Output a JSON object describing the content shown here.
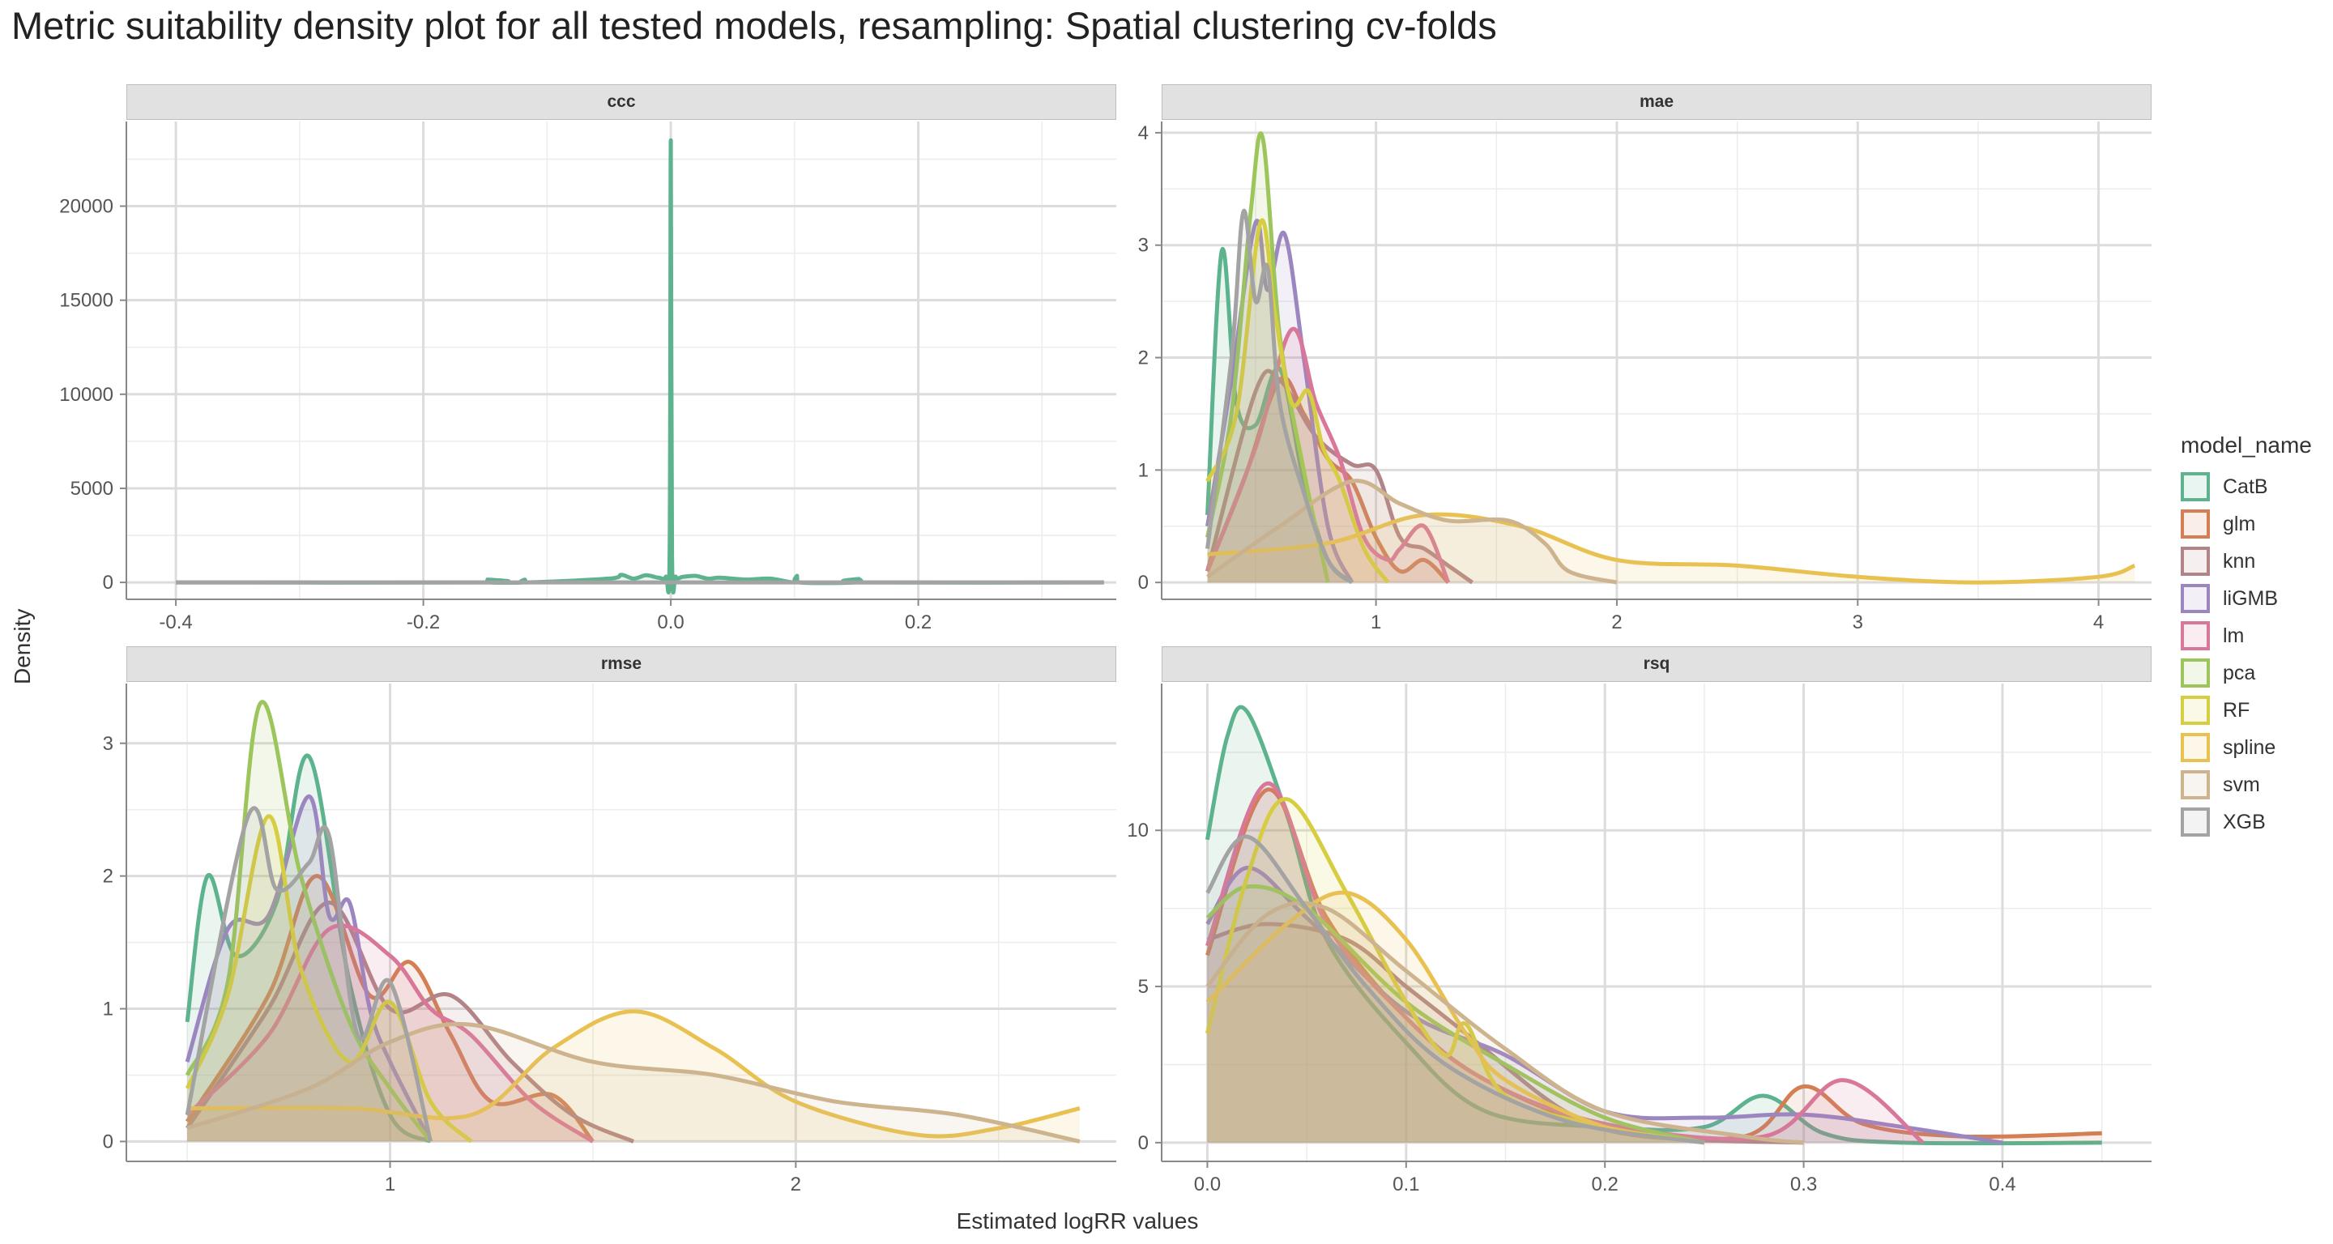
{
  "title": "Metric suitability density plot for all tested models, resampling: Spatial clustering cv-folds",
  "xlabel": "Estimated logRR values",
  "ylabel": "Density",
  "legend_title": "model_name",
  "models": [
    {
      "name": "CatB",
      "color": "#5DB38E"
    },
    {
      "name": "glm",
      "color": "#D47F53"
    },
    {
      "name": "knn",
      "color": "#B28487"
    },
    {
      "name": "liGMB",
      "color": "#9B86C0"
    },
    {
      "name": "lm",
      "color": "#D9779B"
    },
    {
      "name": "pca",
      "color": "#9CC55B"
    },
    {
      "name": "RF",
      "color": "#D6CD40"
    },
    {
      "name": "spline",
      "color": "#E8C150"
    },
    {
      "name": "svm",
      "color": "#CDB48F"
    },
    {
      "name": "XGB",
      "color": "#A3A3A3"
    }
  ],
  "chart_data": [
    {
      "type": "area",
      "panel": "ccc",
      "xlim": [
        -0.44,
        0.36
      ],
      "ylim": [
        -900,
        24500
      ],
      "xticks": [
        -0.4,
        -0.2,
        0.0,
        0.2
      ],
      "xtick_labels": [
        "-0.4",
        "-0.2",
        "0.0",
        "0.2"
      ],
      "yticks": [
        0,
        5000,
        10000,
        15000,
        20000
      ],
      "ytick_labels": [
        "0",
        "5000",
        "10000",
        "15000",
        "20000"
      ],
      "xminor": [
        -0.3,
        -0.1,
        0.1,
        0.3
      ],
      "yminor": [
        2500,
        7500,
        12500,
        17500,
        22500
      ],
      "series": [
        {
          "name": "CatB",
          "x": [
            -0.4,
            -0.15,
            -0.148,
            -0.146,
            -0.12,
            -0.118,
            -0.116,
            -0.05,
            -0.04,
            -0.03,
            -0.02,
            -0.01,
            -0.004,
            -0.001,
            0.0,
            0.001,
            0.004,
            0.01,
            0.02,
            0.03,
            0.04,
            0.06,
            0.08,
            0.1,
            0.102,
            0.104,
            0.15,
            0.152,
            0.154,
            0.35
          ],
          "y": [
            0,
            0,
            150,
            0,
            0,
            150,
            0,
            200,
            400,
            200,
            380,
            250,
            300,
            1500,
            23500,
            1500,
            300,
            300,
            350,
            200,
            250,
            150,
            200,
            0,
            350,
            0,
            0,
            180,
            0,
            0
          ]
        },
        {
          "name": "XGB",
          "x": [
            -0.4,
            0.35
          ],
          "y": [
            0,
            0
          ]
        }
      ]
    },
    {
      "type": "area",
      "panel": "mae",
      "xlim": [
        0.11,
        4.22
      ],
      "ylim": [
        -0.15,
        4.1
      ],
      "xticks": [
        1,
        2,
        3,
        4
      ],
      "xtick_labels": [
        "1",
        "2",
        "3",
        "4"
      ],
      "yticks": [
        0,
        1,
        2,
        3,
        4
      ],
      "ytick_labels": [
        "0",
        "1",
        "2",
        "3",
        "4"
      ],
      "xminor": [
        0.5,
        1.5,
        2.5,
        3.5
      ],
      "yminor": [
        0.5,
        1.5,
        2.5,
        3.5
      ],
      "series": [
        {
          "name": "CatB",
          "x": [
            0.3,
            0.36,
            0.42,
            0.5,
            0.6,
            0.7,
            0.8,
            0.9
          ],
          "y": [
            0.6,
            2.95,
            1.6,
            1.4,
            1.9,
            0.9,
            0.2,
            0
          ]
        },
        {
          "name": "glm",
          "x": [
            0.3,
            0.45,
            0.6,
            0.7,
            0.8,
            0.9,
            1.0,
            1.1,
            1.2,
            1.3
          ],
          "y": [
            0.1,
            0.9,
            1.8,
            1.5,
            1.1,
            0.9,
            0.4,
            0.1,
            0.2,
            0
          ]
        },
        {
          "name": "knn",
          "x": [
            0.3,
            0.5,
            0.6,
            0.75,
            0.9,
            1.0,
            1.1,
            1.2,
            1.3,
            1.4
          ],
          "y": [
            0.1,
            1.7,
            1.8,
            1.3,
            1.05,
            1.0,
            0.4,
            0.3,
            0.15,
            0
          ]
        },
        {
          "name": "liGMB",
          "x": [
            0.3,
            0.4,
            0.5,
            0.55,
            0.62,
            0.7,
            0.8,
            0.9
          ],
          "y": [
            0.5,
            1.8,
            3.2,
            2.6,
            3.1,
            2.0,
            0.5,
            0
          ]
        },
        {
          "name": "lm",
          "x": [
            0.3,
            0.5,
            0.65,
            0.75,
            0.85,
            0.95,
            1.05,
            1.1,
            1.2,
            1.3
          ],
          "y": [
            0.1,
            1.2,
            2.25,
            1.6,
            1.1,
            0.4,
            0.2,
            0.3,
            0.5,
            0
          ]
        },
        {
          "name": "pca",
          "x": [
            0.3,
            0.4,
            0.48,
            0.53,
            0.6,
            0.7,
            0.8
          ],
          "y": [
            0.4,
            1.5,
            3.3,
            3.95,
            2.2,
            1.0,
            0
          ]
        },
        {
          "name": "RF",
          "x": [
            0.3,
            0.42,
            0.52,
            0.58,
            0.65,
            0.72,
            0.78,
            0.85,
            0.95,
            1.05
          ],
          "y": [
            0.9,
            1.5,
            3.2,
            2.4,
            1.6,
            1.7,
            1.2,
            0.9,
            0.3,
            0
          ]
        },
        {
          "name": "spline",
          "x": [
            0.3,
            0.8,
            1.2,
            1.6,
            2.0,
            2.5,
            3.0,
            3.5,
            4.0,
            4.15
          ],
          "y": [
            0.25,
            0.35,
            0.6,
            0.5,
            0.2,
            0.15,
            0.05,
            0,
            0.05,
            0.15
          ]
        },
        {
          "name": "svm",
          "x": [
            0.3,
            0.6,
            0.9,
            1.1,
            1.3,
            1.55,
            1.7,
            1.8,
            2.0
          ],
          "y": [
            0.05,
            0.5,
            0.9,
            0.7,
            0.55,
            0.55,
            0.35,
            0.1,
            0
          ]
        },
        {
          "name": "XGB",
          "x": [
            0.3,
            0.4,
            0.45,
            0.5,
            0.55,
            0.6,
            0.7,
            0.8,
            0.9
          ],
          "y": [
            0.3,
            2.0,
            3.3,
            2.5,
            2.8,
            1.6,
            0.8,
            0.2,
            0
          ]
        }
      ]
    },
    {
      "type": "area",
      "panel": "rmse",
      "xlim": [
        0.35,
        2.79
      ],
      "ylim": [
        -0.15,
        3.45
      ],
      "xticks": [
        1,
        2
      ],
      "xtick_labels": [
        "1",
        "2"
      ],
      "yticks": [
        0,
        1,
        2,
        3
      ],
      "ytick_labels": [
        "0",
        "1",
        "2",
        "3"
      ],
      "xminor": [
        0.5,
        1.5,
        2.5
      ],
      "yminor": [
        0.5,
        1.5,
        2.5
      ],
      "series": [
        {
          "name": "CatB",
          "x": [
            0.5,
            0.55,
            0.62,
            0.72,
            0.8,
            0.9,
            1.0,
            1.1
          ],
          "y": [
            0.9,
            2.0,
            1.4,
            1.8,
            2.9,
            1.2,
            0.2,
            0
          ]
        },
        {
          "name": "glm",
          "x": [
            0.5,
            0.7,
            0.82,
            0.95,
            1.05,
            1.15,
            1.25,
            1.4,
            1.5
          ],
          "y": [
            0.15,
            1.1,
            2.0,
            1.1,
            1.35,
            0.8,
            0.3,
            0.35,
            0
          ]
        },
        {
          "name": "knn",
          "x": [
            0.5,
            0.7,
            0.85,
            1.0,
            1.15,
            1.3,
            1.45,
            1.6
          ],
          "y": [
            0.1,
            1.0,
            1.8,
            1.0,
            1.1,
            0.6,
            0.2,
            0
          ]
        },
        {
          "name": "liGMB",
          "x": [
            0.5,
            0.6,
            0.7,
            0.8,
            0.85,
            0.9,
            0.95,
            1.0,
            1.1
          ],
          "y": [
            0.6,
            1.6,
            1.7,
            2.6,
            1.7,
            1.8,
            1.0,
            0.6,
            0
          ]
        },
        {
          "name": "lm",
          "x": [
            0.5,
            0.7,
            0.85,
            1.0,
            1.1,
            1.2,
            1.35,
            1.5
          ],
          "y": [
            0.2,
            0.8,
            1.6,
            1.4,
            1.0,
            0.8,
            0.3,
            0
          ]
        },
        {
          "name": "pca",
          "x": [
            0.5,
            0.6,
            0.68,
            0.78,
            0.9,
            1.0,
            1.1
          ],
          "y": [
            0.5,
            1.2,
            3.3,
            2.0,
            0.9,
            0.4,
            0
          ]
        },
        {
          "name": "RF",
          "x": [
            0.5,
            0.6,
            0.7,
            0.78,
            0.9,
            1.0,
            1.1,
            1.2
          ],
          "y": [
            0.4,
            1.1,
            2.45,
            1.3,
            0.6,
            1.05,
            0.3,
            0
          ]
        },
        {
          "name": "spline",
          "x": [
            0.5,
            0.9,
            1.2,
            1.4,
            1.6,
            1.8,
            2.0,
            2.3,
            2.5,
            2.7
          ],
          "y": [
            0.25,
            0.25,
            0.2,
            0.7,
            0.98,
            0.7,
            0.3,
            0.05,
            0.1,
            0.25
          ]
        },
        {
          "name": "svm",
          "x": [
            0.5,
            0.8,
            1.0,
            1.2,
            1.5,
            1.8,
            2.1,
            2.4,
            2.7
          ],
          "y": [
            0.1,
            0.4,
            0.75,
            0.88,
            0.6,
            0.5,
            0.3,
            0.2,
            0
          ]
        },
        {
          "name": "XGB",
          "x": [
            0.5,
            0.65,
            0.72,
            0.8,
            0.85,
            0.92,
            1.0,
            1.1
          ],
          "y": [
            0.2,
            2.45,
            1.9,
            2.1,
            2.3,
            0.8,
            1.2,
            0
          ]
        }
      ]
    },
    {
      "type": "area",
      "panel": "rsq",
      "xlim": [
        -0.023,
        0.475
      ],
      "ylim": [
        -0.6,
        14.7
      ],
      "xticks": [
        0.0,
        0.1,
        0.2,
        0.3,
        0.4
      ],
      "xtick_labels": [
        "0.0",
        "0.1",
        "0.2",
        "0.3",
        "0.4"
      ],
      "yticks": [
        0,
        5,
        10
      ],
      "ytick_labels": [
        "0",
        "5",
        "10"
      ],
      "xminor": [
        0.05,
        0.15,
        0.25,
        0.35,
        0.45
      ],
      "yminor": [
        2.5,
        7.5,
        12.5
      ],
      "series": [
        {
          "name": "CatB",
          "x": [
            0.0,
            0.01,
            0.02,
            0.04,
            0.06,
            0.1,
            0.14,
            0.2,
            0.25,
            0.28,
            0.31,
            0.35,
            0.45
          ],
          "y": [
            9.7,
            13.0,
            13.8,
            10.5,
            6.5,
            3.2,
            1.0,
            0.5,
            0.5,
            1.5,
            0.3,
            0,
            0
          ]
        },
        {
          "name": "glm",
          "x": [
            0.0,
            0.03,
            0.06,
            0.1,
            0.14,
            0.2,
            0.27,
            0.3,
            0.33,
            0.38,
            0.45
          ],
          "y": [
            6.0,
            11.3,
            7.2,
            4.0,
            2.0,
            0.5,
            0.2,
            1.8,
            0.6,
            0.2,
            0.3
          ]
        },
        {
          "name": "knn",
          "x": [
            0.0,
            0.03,
            0.07,
            0.1,
            0.13,
            0.18,
            0.22,
            0.3
          ],
          "y": [
            6.5,
            7.0,
            6.5,
            5.0,
            3.5,
            1.0,
            0.2,
            0
          ]
        },
        {
          "name": "liGMB",
          "x": [
            0.0,
            0.02,
            0.05,
            0.1,
            0.15,
            0.2,
            0.25,
            0.3,
            0.35,
            0.4
          ],
          "y": [
            7.0,
            8.8,
            7.2,
            4.2,
            2.8,
            1.0,
            0.8,
            0.9,
            0.5,
            0
          ]
        },
        {
          "name": "lm",
          "x": [
            0.0,
            0.03,
            0.06,
            0.1,
            0.14,
            0.2,
            0.28,
            0.32,
            0.36
          ],
          "y": [
            6.3,
            11.5,
            7.0,
            4.0,
            2.0,
            0.6,
            0.2,
            2.0,
            0
          ]
        },
        {
          "name": "pca",
          "x": [
            0.0,
            0.02,
            0.05,
            0.1,
            0.15,
            0.2,
            0.25
          ],
          "y": [
            7.2,
            8.2,
            7.5,
            4.5,
            2.5,
            0.8,
            0
          ]
        },
        {
          "name": "RF",
          "x": [
            0.0,
            0.02,
            0.04,
            0.07,
            0.1,
            0.12,
            0.13,
            0.15,
            0.2,
            0.25
          ],
          "y": [
            3.5,
            8.5,
            11.0,
            8.0,
            4.5,
            2.8,
            3.8,
            1.5,
            0.5,
            0
          ]
        },
        {
          "name": "spline",
          "x": [
            0.0,
            0.04,
            0.07,
            0.1,
            0.13,
            0.15,
            0.2,
            0.25
          ],
          "y": [
            4.5,
            7.0,
            8.0,
            6.5,
            3.5,
            2.0,
            0.5,
            0
          ]
        },
        {
          "name": "svm",
          "x": [
            0.0,
            0.03,
            0.06,
            0.1,
            0.15,
            0.2,
            0.27,
            0.3
          ],
          "y": [
            5.0,
            7.3,
            7.5,
            5.5,
            3.0,
            1.0,
            0.2,
            0
          ]
        },
        {
          "name": "XGB",
          "x": [
            0.0,
            0.02,
            0.05,
            0.08,
            0.12,
            0.18,
            0.25
          ],
          "y": [
            8.0,
            9.8,
            7.5,
            5.0,
            2.5,
            0.7,
            0
          ]
        }
      ]
    }
  ]
}
